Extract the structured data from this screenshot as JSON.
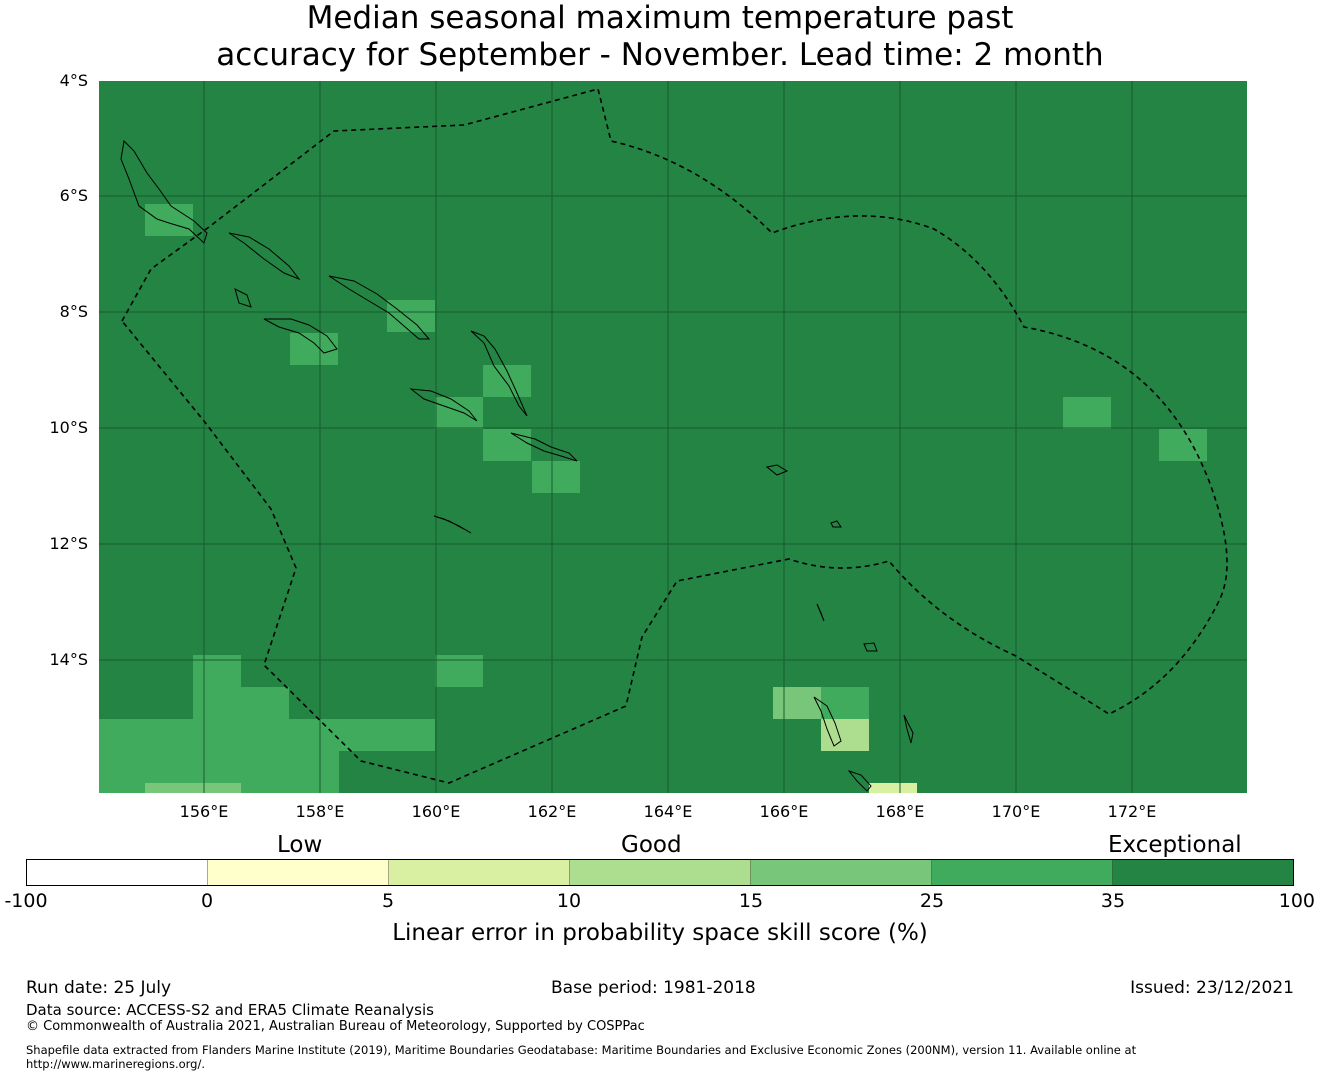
{
  "title": {
    "line1": "Median seasonal maximum temperature past",
    "line2": "accuracy for September - November. Lead time: 2 month"
  },
  "map": {
    "lat_labels": [
      "4°S",
      "6°S",
      "8°S",
      "10°S",
      "12°S",
      "14°S"
    ],
    "lon_labels": [
      "156°E",
      "158°E",
      "160°E",
      "162°E",
      "164°E",
      "166°E",
      "168°E",
      "170°E",
      "172°E"
    ],
    "background_color": "#238443",
    "grid_color": "#1a5c30",
    "coastline_color": "#000000",
    "boundary_style": "dashed black line (exclusive economic zone)"
  },
  "legend": {
    "categories": [
      "Low",
      "Good",
      "Exceptional"
    ],
    "ticks": [
      "-100",
      "0",
      "5",
      "10",
      "15",
      "25",
      "35",
      "100"
    ],
    "colors": [
      "#ffffff",
      "#ffffcc",
      "#d9f0a3",
      "#addd8e",
      "#78c679",
      "#41ab5d",
      "#238443"
    ],
    "title": "Linear error in probability space skill score (%)"
  },
  "footer": {
    "run_date": "Run date: 25 July",
    "base_period": "Base period: 1981-2018",
    "issued": "Issued: 23/12/2021",
    "data_source": "Data source: ACCESS-S2 and ERA5 Climate Reanalysis",
    "copyright": "© Commonwealth of Australia 2021, Australian Bureau of Meteorology, Supported by COSPPac",
    "shapefile_line1": "Shapefile data extracted from Flanders Marine Institute (2019), Maritime Boundaries Geodatabase: Maritime Boundaries and Exclusive Economic Zones (200NM), version 11. Available online at",
    "shapefile_line2": "http://www.marineregions.org/."
  }
}
